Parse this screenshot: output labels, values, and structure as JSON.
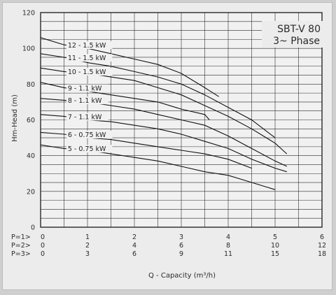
{
  "chart_data": {
    "type": "line",
    "title": "SBT-V 80",
    "subtitle": "3~ Phase",
    "ylabel": "Hm-Head (m)",
    "xlabel": "Q - Capacity (m³/h)",
    "ylim": [
      0,
      120
    ],
    "xlim": [
      0,
      6
    ],
    "y_ticks": [
      "0",
      "20",
      "40",
      "60",
      "80",
      "100",
      "120"
    ],
    "x_scales": [
      {
        "label": "P=1>",
        "ticks": [
          "0",
          "1",
          "2",
          "3",
          "4",
          "5",
          "6"
        ]
      },
      {
        "label": "P=2>",
        "ticks": [
          "0",
          "2",
          "4",
          "6",
          "8",
          "10",
          "12"
        ]
      },
      {
        "label": "P=3>",
        "ticks": [
          "0",
          "3",
          "6",
          "9",
          "11",
          "15",
          "18"
        ]
      }
    ],
    "grid": true,
    "series": [
      {
        "name": "12 - 1.5 kW",
        "x": [
          0,
          0.5,
          1,
          1.5,
          2,
          2.5,
          3,
          3.5,
          3.8
        ],
        "y": [
          106,
          102,
          100,
          97,
          94,
          91,
          86,
          78,
          73
        ]
      },
      {
        "name": "11 - 1.5 kW",
        "x": [
          0,
          0.5,
          1,
          1.5,
          2,
          2.5,
          3,
          3.5,
          4,
          4.5,
          5
        ],
        "y": [
          97,
          95,
          92,
          90,
          87,
          84,
          80,
          74,
          67,
          60,
          50
        ]
      },
      {
        "name": "10 - 1.5 kW",
        "x": [
          0,
          0.5,
          1,
          1.5,
          2,
          2.5,
          3,
          3.5,
          4,
          4.5,
          5,
          5.25
        ],
        "y": [
          89,
          87,
          86,
          84,
          82,
          78,
          74,
          68,
          62,
          55,
          47,
          41
        ]
      },
      {
        "name": "9 - 1.1 kW",
        "x": [
          0,
          0.5,
          1,
          1.5,
          2,
          2.5,
          3,
          3.5,
          3.6
        ],
        "y": [
          81,
          78,
          76,
          74,
          72,
          70,
          66,
          63,
          60
        ]
      },
      {
        "name": "8 - 1.1 kW",
        "x": [
          0,
          0.5,
          1,
          1.5,
          2,
          2.5,
          3,
          3.5,
          4,
          4.5,
          5,
          5.25
        ],
        "y": [
          72,
          71,
          70,
          68,
          66,
          63,
          60,
          57,
          51,
          44,
          37,
          34
        ]
      },
      {
        "name": "7 - 1.1 kW",
        "x": [
          0,
          0.5,
          1,
          1.5,
          2,
          2.5,
          3,
          3.5,
          4,
          4.5,
          5,
          5.25
        ],
        "y": [
          63,
          62,
          60,
          59,
          57,
          55,
          52,
          48,
          44,
          38,
          33,
          31
        ]
      },
      {
        "name": "6 - 0.75 kW",
        "x": [
          0,
          0.5,
          1,
          1.5,
          2,
          2.5,
          3,
          3.5,
          4,
          4.5
        ],
        "y": [
          53,
          52,
          50,
          49,
          47,
          45,
          43,
          41,
          38,
          33
        ]
      },
      {
        "name": "5 - 0.75 kW",
        "x": [
          0,
          0.5,
          1,
          1.5,
          2,
          2.5,
          3,
          3.5,
          4,
          4.5,
          5
        ],
        "y": [
          46,
          44,
          43,
          41,
          39,
          37,
          34,
          31,
          29,
          25,
          21
        ]
      }
    ]
  }
}
